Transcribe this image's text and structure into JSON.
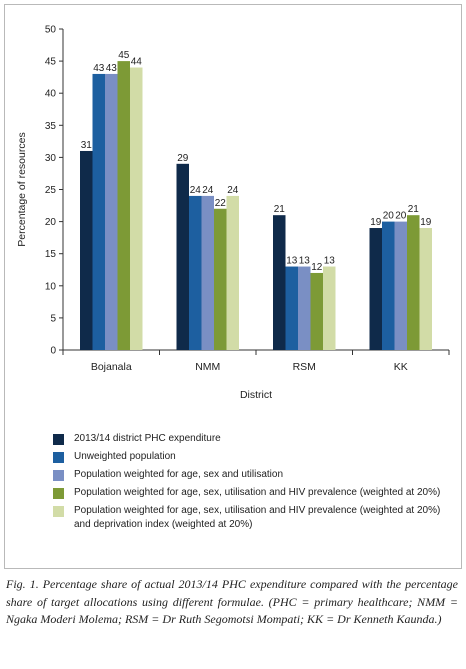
{
  "chart_data": {
    "type": "bar",
    "categories": [
      "Bojanala",
      "NMM",
      "RSM",
      "KK"
    ],
    "series": [
      {
        "name": "2013/14 district PHC expenditure",
        "values": [
          31,
          29,
          21,
          19
        ],
        "color": "#0f2a4a"
      },
      {
        "name": "Unweighted population",
        "values": [
          43,
          24,
          13,
          20
        ],
        "color": "#1d5fa0"
      },
      {
        "name": "Population weighted for age, sex and utilisation",
        "values": [
          43,
          24,
          13,
          20
        ],
        "color": "#7a8fc4"
      },
      {
        "name": "Population weighted for age, sex, utilisation and HIV prevalence (weighted at 20%)",
        "values": [
          45,
          22,
          12,
          21
        ],
        "color": "#7d9a36"
      },
      {
        "name": "Population weighted for age, sex, utilisation and HIV prevalence (weighted at 20%) and deprivation index (weighted at 20%)",
        "values": [
          44,
          24,
          13,
          19
        ],
        "color": "#d2dca7"
      }
    ],
    "xlabel": "District",
    "ylabel": "Percentage of resources",
    "ylim": [
      0,
      50
    ],
    "yticks": [
      0,
      5,
      10,
      15,
      20,
      25,
      30,
      35,
      40,
      45,
      50
    ],
    "grid": false,
    "legend_position": "bottom"
  },
  "caption": "Fig. 1. Percentage share of actual 2013/14 PHC expenditure compared with the percentage share of target allocations using different formulae. (PHC = primary healthcare; NMM = Ngaka Moderi Molema; RSM = Dr Ruth Segomotsi Mompati; KK = Dr Kenneth Kaunda.)"
}
